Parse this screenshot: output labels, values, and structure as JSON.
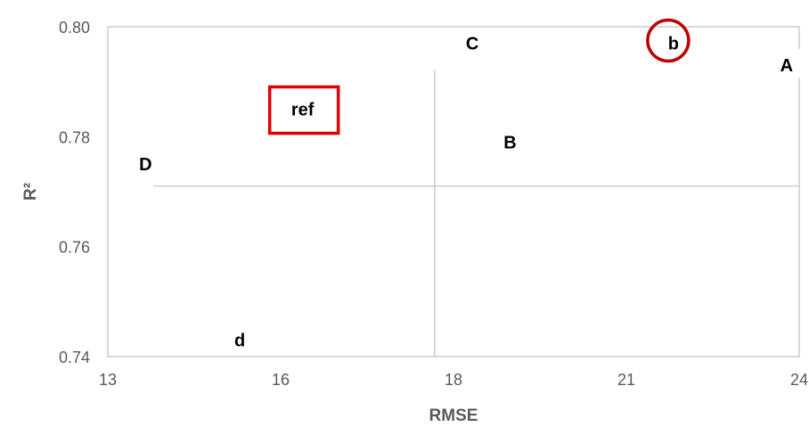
{
  "chart_data": {
    "type": "scatter",
    "xlabel": "RMSE",
    "ylabel": "R²",
    "x_ticks": [
      "13",
      "16",
      "18",
      "21",
      "24"
    ],
    "y_ticks": [
      "0.74",
      "0.76",
      "0.78",
      "0.80"
    ],
    "xlim": [
      13,
      24
    ],
    "ylim": [
      0.74,
      0.8
    ],
    "grid": false,
    "reference_lines": {
      "x": 18.2,
      "y": 0.771
    },
    "points": [
      {
        "label": "C",
        "x": 18.8,
        "y": 0.797
      },
      {
        "label": "b",
        "x": 22.0,
        "y": 0.797,
        "marker": "circle"
      },
      {
        "label": "A",
        "x": 23.8,
        "y": 0.793
      },
      {
        "label": "ref",
        "x": 16.1,
        "y": 0.785,
        "marker": "box"
      },
      {
        "label": "B",
        "x": 19.4,
        "y": 0.779
      },
      {
        "label": "D",
        "x": 13.6,
        "y": 0.775
      },
      {
        "label": "d",
        "x": 15.1,
        "y": 0.743
      }
    ],
    "colors": {
      "axis": "#bfbfbf",
      "text": "#595959",
      "label": "#000000",
      "highlight": "#e00000",
      "circle": "#c00000"
    }
  }
}
